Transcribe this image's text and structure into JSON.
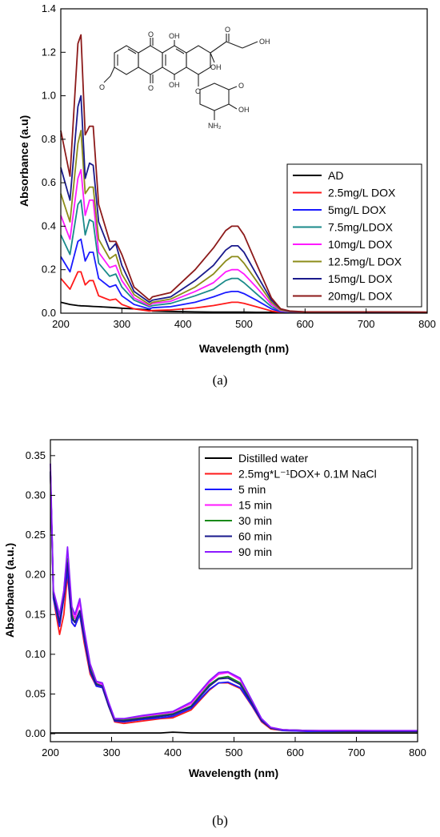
{
  "captions": [
    "(a)",
    "(b)"
  ],
  "molecule": {
    "labels": [
      "O",
      "OH",
      "O",
      "OH",
      "OH",
      "O",
      "OH",
      "O",
      "O",
      "OH",
      "O",
      "NH₂"
    ]
  },
  "chart_data": [
    {
      "type": "line",
      "xlabel": "Wavelength (nm)",
      "ylabel": "Absorbance (a.u)",
      "xlim": [
        200,
        800
      ],
      "ylim": [
        0,
        1.4
      ],
      "xticks": [
        200,
        300,
        400,
        500,
        600,
        700,
        800
      ],
      "yticks": [
        0.0,
        0.2,
        0.4,
        0.6,
        0.8,
        1.0,
        1.2,
        1.4
      ],
      "ytick_labels": [
        "0.0",
        "0.2",
        "0.4",
        "0.6",
        "0.8",
        "1.0",
        "1.2",
        "1.4"
      ],
      "legend_position": "right",
      "x": [
        200,
        215,
        228,
        233,
        240,
        247,
        253,
        262,
        280,
        290,
        300,
        320,
        345,
        350,
        380,
        420,
        450,
        470,
        480,
        490,
        500,
        520,
        545,
        560,
        575,
        600,
        700,
        800
      ],
      "series": [
        {
          "name": "AD",
          "color": "#000000",
          "values": [
            0.05,
            0.04,
            0.035,
            0.034,
            0.033,
            0.032,
            0.031,
            0.03,
            0.027,
            0.025,
            0.023,
            0.02,
            0.015,
            0.01,
            0.008,
            0.006,
            0.005,
            0.005,
            0.005,
            0.005,
            0.005,
            0.004,
            0.004,
            0.004,
            0.004,
            0.003,
            0.003,
            0.002
          ]
        },
        {
          "name": "2.5mg/L DOX",
          "color": "#ff1a1a",
          "values": [
            0.16,
            0.11,
            0.19,
            0.19,
            0.13,
            0.15,
            0.15,
            0.08,
            0.06,
            0.065,
            0.04,
            0.02,
            0.01,
            0.012,
            0.015,
            0.024,
            0.035,
            0.045,
            0.05,
            0.05,
            0.045,
            0.03,
            0.01,
            0.004,
            0.003,
            0.003,
            0.003,
            0.003
          ]
        },
        {
          "name": "5mg/L DOX",
          "color": "#1a1aff",
          "values": [
            0.26,
            0.19,
            0.33,
            0.34,
            0.24,
            0.28,
            0.28,
            0.16,
            0.12,
            0.13,
            0.08,
            0.04,
            0.02,
            0.025,
            0.03,
            0.05,
            0.075,
            0.095,
            0.1,
            0.1,
            0.09,
            0.06,
            0.02,
            0.007,
            0.004,
            0.004,
            0.004,
            0.004
          ]
        },
        {
          "name": "7.5mg/LDOX",
          "color": "#1a8a8a",
          "values": [
            0.36,
            0.27,
            0.5,
            0.52,
            0.36,
            0.43,
            0.42,
            0.23,
            0.17,
            0.18,
            0.12,
            0.06,
            0.03,
            0.035,
            0.045,
            0.08,
            0.11,
            0.15,
            0.16,
            0.16,
            0.14,
            0.09,
            0.03,
            0.01,
            0.005,
            0.004,
            0.004,
            0.004
          ]
        },
        {
          "name": "10mg/L DOX",
          "color": "#ff1aff",
          "values": [
            0.45,
            0.34,
            0.62,
            0.66,
            0.45,
            0.52,
            0.52,
            0.28,
            0.21,
            0.22,
            0.15,
            0.07,
            0.035,
            0.045,
            0.055,
            0.1,
            0.14,
            0.19,
            0.2,
            0.2,
            0.18,
            0.12,
            0.04,
            0.012,
            0.006,
            0.005,
            0.004,
            0.004
          ]
        },
        {
          "name": "12.5mg/L DOX",
          "color": "#8c8c1a",
          "values": [
            0.55,
            0.42,
            0.78,
            0.84,
            0.55,
            0.58,
            0.58,
            0.34,
            0.25,
            0.27,
            0.18,
            0.085,
            0.04,
            0.05,
            0.065,
            0.12,
            0.18,
            0.24,
            0.26,
            0.26,
            0.23,
            0.15,
            0.05,
            0.015,
            0.007,
            0.005,
            0.005,
            0.004
          ]
        },
        {
          "name": "15mg/L DOX",
          "color": "#1a1a8c",
          "values": [
            0.67,
            0.52,
            0.95,
            1.0,
            0.62,
            0.69,
            0.68,
            0.42,
            0.29,
            0.32,
            0.22,
            0.1,
            0.05,
            0.06,
            0.075,
            0.15,
            0.22,
            0.29,
            0.31,
            0.31,
            0.28,
            0.18,
            0.06,
            0.02,
            0.008,
            0.006,
            0.005,
            0.004
          ]
        },
        {
          "name": "20mg/L DOX",
          "color": "#8c1a1a",
          "values": [
            0.84,
            0.63,
            1.24,
            1.28,
            0.82,
            0.86,
            0.86,
            0.5,
            0.33,
            0.33,
            0.27,
            0.12,
            0.06,
            0.075,
            0.095,
            0.2,
            0.3,
            0.38,
            0.4,
            0.4,
            0.36,
            0.23,
            0.07,
            0.02,
            0.01,
            0.006,
            0.006,
            0.005
          ]
        }
      ]
    },
    {
      "type": "line",
      "xlabel": "Wavelength (nm)",
      "ylabel": "Absorbance (a.u.)",
      "xlim": [
        200,
        800
      ],
      "ylim": [
        -0.01,
        0.37
      ],
      "xticks": [
        200,
        300,
        400,
        500,
        600,
        700,
        800
      ],
      "yticks": [
        0.0,
        0.05,
        0.1,
        0.15,
        0.2,
        0.25,
        0.3,
        0.35
      ],
      "ytick_labels": [
        "0.00",
        "0.05",
        "0.10",
        "0.15",
        "0.20",
        "0.25",
        "0.30",
        "0.35"
      ],
      "legend_position": "top-right",
      "x": [
        200,
        205,
        215,
        222,
        228,
        235,
        240,
        248,
        255,
        265,
        275,
        285,
        295,
        305,
        320,
        350,
        380,
        400,
        430,
        460,
        475,
        490,
        510,
        530,
        545,
        560,
        580,
        620,
        700,
        800
      ],
      "series": [
        {
          "name": "Distilled water",
          "color": "#000000",
          "values": [
            0.001,
            0.001,
            0.001,
            0.001,
            0.001,
            0.001,
            0.001,
            0.001,
            0.001,
            0.001,
            0.001,
            0.001,
            0.001,
            0.001,
            0.001,
            0.001,
            0.001,
            0.002,
            0.001,
            0.001,
            0.001,
            0.001,
            0.001,
            0.001,
            0.001,
            0.001,
            0.001,
            0.001,
            0.001,
            0.001
          ]
        },
        {
          "name": "2.5mg*L⁻¹DOX+ 0.1M NaCl",
          "color": "#ff1a1a",
          "values": [
            0.33,
            0.17,
            0.125,
            0.15,
            0.2,
            0.14,
            0.135,
            0.15,
            0.115,
            0.075,
            0.06,
            0.058,
            0.035,
            0.015,
            0.013,
            0.016,
            0.019,
            0.02,
            0.03,
            0.055,
            0.064,
            0.064,
            0.057,
            0.034,
            0.015,
            0.006,
            0.004,
            0.003,
            0.003,
            0.003
          ]
        },
        {
          "name": "5 min",
          "color": "#1a1aff",
          "values": [
            0.33,
            0.17,
            0.135,
            0.17,
            0.205,
            0.14,
            0.135,
            0.15,
            0.12,
            0.078,
            0.06,
            0.058,
            0.035,
            0.016,
            0.015,
            0.018,
            0.02,
            0.022,
            0.032,
            0.056,
            0.064,
            0.065,
            0.058,
            0.035,
            0.016,
            0.007,
            0.004,
            0.003,
            0.003,
            0.003
          ]
        },
        {
          "name": "15 min",
          "color": "#ff1aff",
          "values": [
            0.33,
            0.18,
            0.145,
            0.18,
            0.23,
            0.155,
            0.145,
            0.165,
            0.13,
            0.085,
            0.065,
            0.062,
            0.038,
            0.018,
            0.018,
            0.022,
            0.025,
            0.027,
            0.038,
            0.065,
            0.075,
            0.077,
            0.068,
            0.04,
            0.018,
            0.008,
            0.005,
            0.004,
            0.004,
            0.003
          ]
        },
        {
          "name": "30 min",
          "color": "#1a8a1a",
          "values": [
            0.33,
            0.175,
            0.14,
            0.175,
            0.22,
            0.15,
            0.14,
            0.155,
            0.125,
            0.082,
            0.063,
            0.06,
            0.036,
            0.017,
            0.017,
            0.02,
            0.023,
            0.025,
            0.035,
            0.062,
            0.07,
            0.072,
            0.064,
            0.038,
            0.017,
            0.007,
            0.005,
            0.004,
            0.003,
            0.003
          ]
        },
        {
          "name": "60 min",
          "color": "#1a1a8c",
          "values": [
            0.33,
            0.175,
            0.14,
            0.175,
            0.215,
            0.145,
            0.14,
            0.155,
            0.125,
            0.08,
            0.062,
            0.06,
            0.036,
            0.017,
            0.016,
            0.019,
            0.022,
            0.024,
            0.034,
            0.06,
            0.069,
            0.07,
            0.062,
            0.037,
            0.017,
            0.007,
            0.005,
            0.004,
            0.003,
            0.003
          ]
        },
        {
          "name": "90 min",
          "color": "#8c1aff",
          "values": [
            0.34,
            0.18,
            0.15,
            0.18,
            0.235,
            0.16,
            0.15,
            0.17,
            0.132,
            0.088,
            0.066,
            0.064,
            0.04,
            0.019,
            0.019,
            0.023,
            0.026,
            0.028,
            0.04,
            0.067,
            0.077,
            0.078,
            0.07,
            0.041,
            0.019,
            0.008,
            0.005,
            0.004,
            0.004,
            0.004
          ]
        }
      ]
    }
  ]
}
